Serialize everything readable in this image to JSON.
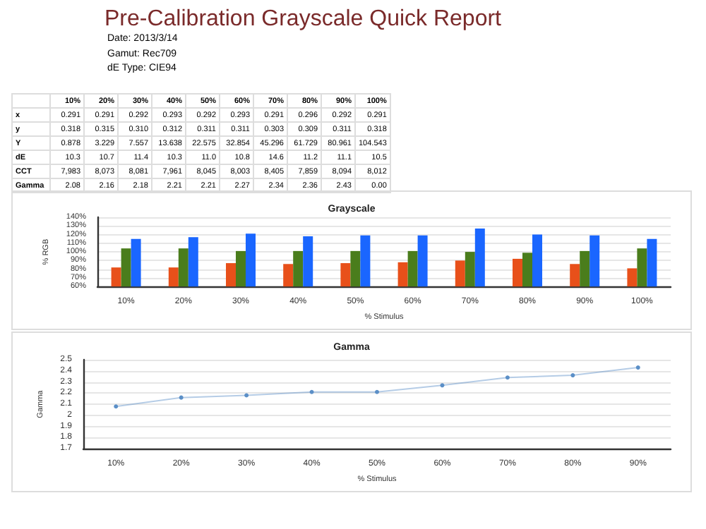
{
  "chart_data": [
    {
      "type": "heatmap",
      "title": "Pre-Calibration Grayscale Quick Report",
      "annotations": [
        "Date: 2013/3/14",
        "Gamut: Rec709",
        "dE Type: CIE94"
      ],
      "categories": [
        "10%",
        "20%",
        "30%",
        "40%",
        "50%",
        "60%",
        "70%",
        "80%",
        "90%",
        "100%"
      ],
      "y_categories": [
        "x",
        "y",
        "Y",
        "dE",
        "CCT",
        "Gamma"
      ],
      "cells": [
        [
          0.291,
          0.291,
          0.292,
          0.293,
          0.292,
          0.293,
          0.291,
          0.296,
          0.292,
          0.291
        ],
        [
          0.318,
          0.315,
          0.31,
          0.312,
          0.311,
          0.311,
          0.303,
          0.309,
          0.311,
          0.318
        ],
        [
          0.878,
          3.229,
          7.557,
          13.638,
          22.575,
          32.854,
          45.296,
          61.729,
          80.961,
          104.543
        ],
        [
          10.3,
          10.7,
          11.4,
          10.3,
          11.0,
          10.8,
          14.6,
          11.2,
          11.1,
          10.5
        ],
        [
          7983,
          8073,
          8081,
          7961,
          8045,
          8003,
          8405,
          7859,
          8094,
          8012
        ],
        [
          2.08,
          2.16,
          2.18,
          2.21,
          2.21,
          2.27,
          2.34,
          2.36,
          2.43,
          0.0
        ]
      ],
      "cell_labels": [
        [
          "0.291",
          "0.291",
          "0.292",
          "0.293",
          "0.292",
          "0.293",
          "0.291",
          "0.296",
          "0.292",
          "0.291"
        ],
        [
          "0.318",
          "0.315",
          "0.310",
          "0.312",
          "0.311",
          "0.311",
          "0.303",
          "0.309",
          "0.311",
          "0.318"
        ],
        [
          "0.878",
          "3.229",
          "7.557",
          "13.638",
          "22.575",
          "32.854",
          "45.296",
          "61.729",
          "80.961",
          "104.543"
        ],
        [
          "10.3",
          "10.7",
          "11.4",
          "10.3",
          "11.0",
          "10.8",
          "14.6",
          "11.2",
          "11.1",
          "10.5"
        ],
        [
          "7,983",
          "8,073",
          "8,081",
          "7,961",
          "8,045",
          "8,003",
          "8,405",
          "7,859",
          "8,094",
          "8,012"
        ],
        [
          "2.08",
          "2.16",
          "2.18",
          "2.21",
          "2.21",
          "2.27",
          "2.34",
          "2.36",
          "2.43",
          "0.00"
        ]
      ]
    },
    {
      "type": "bar",
      "title": "Grayscale",
      "xlabel": "% Stimulus",
      "ylabel": "% RGB",
      "grid": "y",
      "categories": [
        "10%",
        "20%",
        "30%",
        "40%",
        "50%",
        "60%",
        "70%",
        "80%",
        "90%",
        "100%"
      ],
      "ylim": [
        60,
        140
      ],
      "yticks": [
        {
          "value": 60,
          "label": "60%"
        },
        {
          "value": 70,
          "label": "70%"
        },
        {
          "value": 80,
          "label": "80%"
        },
        {
          "value": 90,
          "label": "90%"
        },
        {
          "value": 100,
          "label": "100%"
        },
        {
          "value": 110,
          "label": "110%"
        },
        {
          "value": 120,
          "label": "120%"
        },
        {
          "value": 130,
          "label": "130%"
        },
        {
          "value": 140,
          "label": "140%"
        }
      ],
      "series": [
        {
          "color": "#e8501a",
          "values": [
            82,
            82,
            87,
            86,
            87,
            88,
            90,
            92,
            86,
            81
          ]
        },
        {
          "color": "#4a7d1c",
          "values": [
            104,
            104,
            101,
            101,
            101,
            101,
            100,
            99,
            101,
            104
          ]
        },
        {
          "color": "#1a66ff",
          "values": [
            115,
            117,
            121,
            118,
            119,
            119,
            127,
            120,
            119,
            115
          ]
        }
      ]
    },
    {
      "type": "line",
      "title": "Gamma",
      "xlabel": "% Stimulus",
      "ylabel": "Gamma",
      "grid": "y",
      "marker": "circle",
      "categories": [
        "10%",
        "20%",
        "30%",
        "40%",
        "50%",
        "60%",
        "70%",
        "80%",
        "90%"
      ],
      "ylim": [
        1.7,
        2.5
      ],
      "yticks": [
        1.7,
        1.8,
        1.9,
        2,
        2.1,
        2.2,
        2.3,
        2.4,
        2.5
      ],
      "series": [
        {
          "color": "#5b8fc7",
          "values": [
            2.08,
            2.16,
            2.18,
            2.21,
            2.21,
            2.27,
            2.34,
            2.36,
            2.43
          ]
        }
      ]
    }
  ]
}
